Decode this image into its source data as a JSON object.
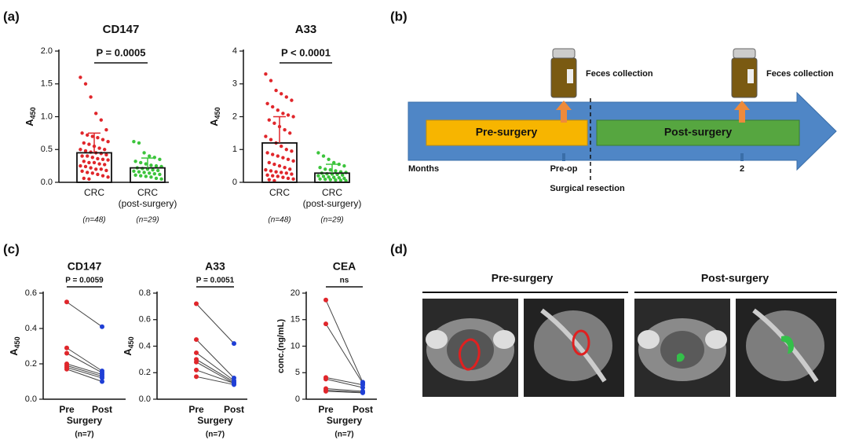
{
  "panel_labels": [
    "(a)",
    "(b)",
    "(c)",
    "(d)"
  ],
  "chart_data": [
    {
      "type": "bar",
      "title": "CD147",
      "ylabel": "A",
      "ylabel_sub": "450",
      "annotation": "P = 0.0005",
      "categories": [
        "CRC",
        "CRC"
      ],
      "sublabels": [
        null,
        "(post-surgery)"
      ],
      "n_labels": [
        "(n=48)",
        "(n=29)"
      ],
      "values": [
        0.45,
        0.22
      ],
      "errors": [
        0.3,
        0.15
      ],
      "colors": [
        "#e0262b",
        "#3cc43c"
      ],
      "points": [
        [
          1.6,
          1.5,
          1.3,
          1.05,
          0.95,
          0.8,
          0.75,
          0.72,
          0.7,
          0.68,
          0.65,
          0.62,
          0.6,
          0.58,
          0.55,
          0.52,
          0.5,
          0.5,
          0.48,
          0.46,
          0.45,
          0.44,
          0.42,
          0.4,
          0.4,
          0.38,
          0.36,
          0.35,
          0.34,
          0.32,
          0.3,
          0.3,
          0.28,
          0.27,
          0.25,
          0.24,
          0.22,
          0.2,
          0.2,
          0.18,
          0.17,
          0.15,
          0.14,
          0.12,
          0.1,
          0.08,
          0.06,
          0.05
        ],
        [
          0.62,
          0.6,
          0.45,
          0.4,
          0.38,
          0.35,
          0.32,
          0.3,
          0.28,
          0.26,
          0.25,
          0.24,
          0.22,
          0.21,
          0.2,
          0.19,
          0.18,
          0.17,
          0.16,
          0.15,
          0.14,
          0.13,
          0.12,
          0.11,
          0.1,
          0.09,
          0.08,
          0.06,
          0.05
        ]
      ],
      "ylim": [
        0,
        2
      ],
      "yticks": [
        {
          "value": 0,
          "label": "0.0"
        },
        0.5,
        {
          "value": 1,
          "label": "1.0"
        },
        1.5,
        {
          "value": 2,
          "label": "2.0"
        }
      ]
    },
    {
      "type": "bar",
      "title": "A33",
      "ylabel": "A",
      "ylabel_sub": "450",
      "annotation": "P < 0.0001",
      "categories": [
        "CRC",
        "CRC"
      ],
      "sublabels": [
        null,
        "(post-surgery)"
      ],
      "n_labels": [
        "(n=48)",
        "(n=29)"
      ],
      "values": [
        1.2,
        0.28
      ],
      "errors": [
        0.8,
        0.27
      ],
      "colors": [
        "#e0262b",
        "#3cc43c"
      ],
      "points": [
        [
          3.3,
          3.1,
          2.8,
          2.7,
          2.6,
          2.5,
          2.4,
          2.3,
          2.2,
          2.1,
          2.05,
          2.0,
          1.9,
          1.8,
          1.7,
          1.6,
          1.5,
          1.4,
          1.3,
          1.2,
          1.1,
          1.0,
          0.95,
          0.9,
          0.85,
          0.8,
          0.75,
          0.7,
          0.65,
          0.6,
          0.55,
          0.5,
          0.45,
          0.4,
          0.38,
          0.35,
          0.32,
          0.3,
          0.28,
          0.25,
          0.22,
          0.2,
          0.18,
          0.15,
          0.12,
          0.1,
          0.08,
          0.05
        ],
        [
          0.9,
          0.8,
          0.7,
          0.6,
          0.55,
          0.5,
          0.45,
          0.4,
          0.38,
          0.35,
          0.32,
          0.3,
          0.28,
          0.26,
          0.25,
          0.24,
          0.22,
          0.2,
          0.18,
          0.16,
          0.15,
          0.14,
          0.12,
          0.1,
          0.09,
          0.08,
          0.07,
          0.06,
          0.05
        ]
      ],
      "ylim": [
        0,
        4
      ],
      "yticks": [
        0,
        1,
        2,
        3,
        4
      ]
    },
    {
      "type": "paired",
      "title": "CD147",
      "ylabel": "A",
      "ylabel_sub": "450",
      "annotation": "P = 0.0059",
      "xlabel": "Surgery",
      "n_label": "(n=7)",
      "series": [
        {
          "name": "Pre",
          "color": "#e0262b",
          "values": [
            0.55,
            0.29,
            0.26,
            0.2,
            0.19,
            0.18,
            0.17
          ]
        },
        {
          "name": "Post",
          "color": "#1f3fd6",
          "values": [
            0.41,
            0.16,
            0.15,
            0.14,
            0.13,
            0.12,
            0.1
          ]
        }
      ],
      "ylim": [
        0,
        0.6
      ],
      "yticks": [
        {
          "value": 0,
          "label": "0.0"
        },
        0.2,
        0.4,
        0.6
      ]
    },
    {
      "type": "paired",
      "title": "A33",
      "ylabel": "A",
      "ylabel_sub": "450",
      "annotation": "P = 0.0051",
      "xlabel": "Surgery",
      "n_label": "(n=7)",
      "series": [
        {
          "name": "Pre",
          "color": "#e0262b",
          "values": [
            0.72,
            0.45,
            0.35,
            0.3,
            0.28,
            0.22,
            0.17
          ]
        },
        {
          "name": "Post",
          "color": "#1f3fd6",
          "values": [
            0.42,
            0.16,
            0.14,
            0.13,
            0.12,
            0.12,
            0.11
          ]
        }
      ],
      "ylim": [
        0,
        0.8
      ],
      "yticks": [
        {
          "value": 0,
          "label": "0.0"
        },
        0.2,
        0.4,
        0.6,
        0.8
      ]
    },
    {
      "type": "paired",
      "title": "CEA",
      "ylabel": "conc.(ng/mL)",
      "annotation": "ns",
      "xlabel": "Surgery",
      "n_label": "(n=7)",
      "series": [
        {
          "name": "Pre",
          "color": "#e0262b",
          "values": [
            18.7,
            14.2,
            4.1,
            3.8,
            2.0,
            1.7,
            1.5
          ]
        },
        {
          "name": "Post",
          "color": "#1f3fd6",
          "values": [
            3.2,
            3.0,
            2.7,
            2.2,
            1.5,
            1.3,
            1.2
          ]
        }
      ],
      "ylim": [
        0,
        20
      ],
      "yticks": [
        0,
        5,
        10,
        15,
        20
      ]
    }
  ],
  "diagram": {
    "collection": [
      "Feces collection",
      "Feces collection"
    ],
    "phases": [
      "Pre-surgery",
      "Post-surgery"
    ],
    "timeline": [
      "Months",
      "Pre-op",
      "2"
    ],
    "event": "Surgical resection"
  },
  "images": {
    "groups": [
      "Pre-surgery",
      "Post-surgery"
    ]
  }
}
